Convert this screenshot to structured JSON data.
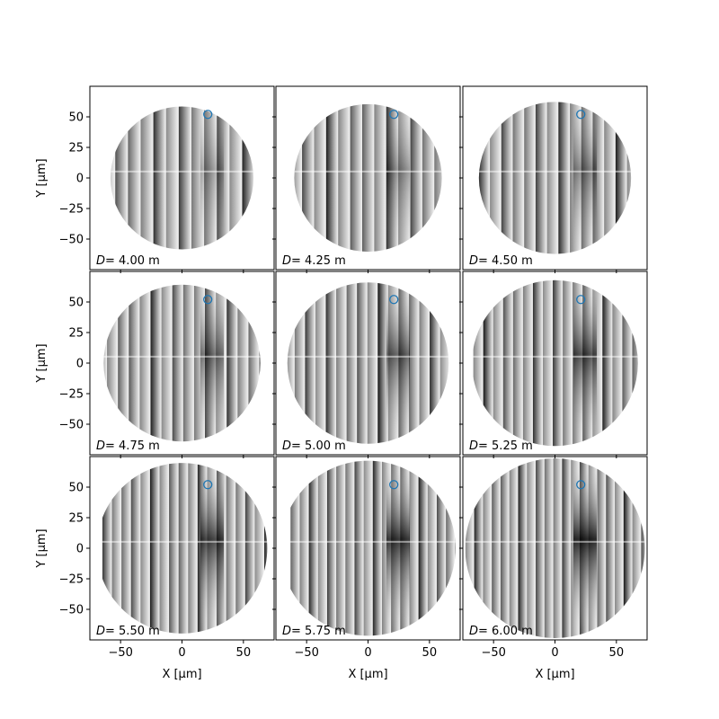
{
  "chart_data": {
    "type": "heatmap",
    "layout": {
      "rows": 3,
      "cols": 3
    },
    "colormap": "gray",
    "xlabel": "X [μm]",
    "ylabel": "Y [μm]",
    "xlim": [
      -75,
      75
    ],
    "ylim": [
      -75,
      75
    ],
    "xticks": [
      -50,
      0,
      50
    ],
    "yticks": [
      -50,
      -25,
      0,
      25,
      50
    ],
    "marker": {
      "shape": "open-circle",
      "x": 21,
      "y": 52,
      "color": "#1f77b4"
    },
    "panels": [
      {
        "label_var": "D",
        "label_value": "= 4.00 m",
        "D": 4.0
      },
      {
        "label_var": "D",
        "label_value": "= 4.25 m",
        "D": 4.25
      },
      {
        "label_var": "D",
        "label_value": "= 4.50 m",
        "D": 4.5
      },
      {
        "label_var": "D",
        "label_value": "= 4.75 m",
        "D": 4.75
      },
      {
        "label_var": "D",
        "label_value": "= 5.00 m",
        "D": 5.0
      },
      {
        "label_var": "D",
        "label_value": "= 5.25 m",
        "D": 5.25
      },
      {
        "label_var": "D",
        "label_value": "= 5.50 m",
        "D": 5.5
      },
      {
        "label_var": "D",
        "label_value": "= 5.75 m",
        "D": 5.75
      },
      {
        "label_var": "D",
        "label_value": "= 6.00 m",
        "D": 6.0
      }
    ]
  }
}
